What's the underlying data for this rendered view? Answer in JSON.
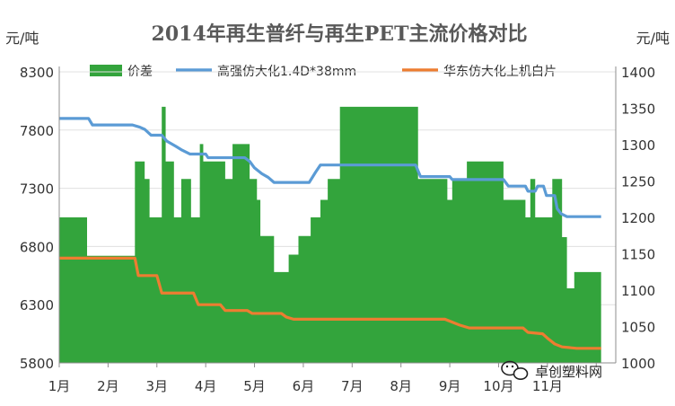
{
  "chart_data": {
    "type": "area+line",
    "title": "2014年再生普纤与再生PET主流价格对比",
    "left_unit": "元/吨",
    "right_unit": "元/吨",
    "categories": [
      "1月",
      "2月",
      "3月",
      "4月",
      "5月",
      "6月",
      "7月",
      "8月",
      "9月",
      "10月",
      "11月"
    ],
    "y_left": {
      "min": 5800,
      "max": 8300,
      "ticks": [
        5800,
        6300,
        6800,
        7300,
        7800,
        8300
      ]
    },
    "y_right": {
      "min": 1000,
      "max": 1400,
      "ticks": [
        1000,
        1050,
        1100,
        1150,
        1200,
        1250,
        1300,
        1350,
        1400
      ]
    },
    "x_range": [
      0,
      11.4
    ],
    "colors": {
      "spread": "#33A43C",
      "fiber": "#5B9BD5",
      "pet": "#ED7D31"
    },
    "series": [
      {
        "name": "价差",
        "axis": "left",
        "type": "area",
        "points": [
          [
            0.0,
            7050
          ],
          [
            0.57,
            7050
          ],
          [
            0.57,
            6720
          ],
          [
            1.55,
            6720
          ],
          [
            1.55,
            7530
          ],
          [
            1.75,
            7530
          ],
          [
            1.75,
            7380
          ],
          [
            1.85,
            7380
          ],
          [
            1.85,
            7050
          ],
          [
            2.1,
            7050
          ],
          [
            2.1,
            8000
          ],
          [
            2.18,
            8000
          ],
          [
            2.18,
            7530
          ],
          [
            2.35,
            7530
          ],
          [
            2.35,
            7050
          ],
          [
            2.5,
            7050
          ],
          [
            2.5,
            7380
          ],
          [
            2.7,
            7380
          ],
          [
            2.7,
            7050
          ],
          [
            2.88,
            7050
          ],
          [
            2.88,
            7680
          ],
          [
            2.95,
            7680
          ],
          [
            2.95,
            7530
          ],
          [
            3.4,
            7530
          ],
          [
            3.4,
            7380
          ],
          [
            3.55,
            7380
          ],
          [
            3.55,
            7680
          ],
          [
            3.9,
            7680
          ],
          [
            3.9,
            7380
          ],
          [
            4.05,
            7380
          ],
          [
            4.05,
            7200
          ],
          [
            4.12,
            7200
          ],
          [
            4.12,
            6890
          ],
          [
            4.4,
            6890
          ],
          [
            4.4,
            6580
          ],
          [
            4.7,
            6580
          ],
          [
            4.7,
            6730
          ],
          [
            4.9,
            6730
          ],
          [
            4.9,
            6890
          ],
          [
            5.15,
            6890
          ],
          [
            5.15,
            7050
          ],
          [
            5.35,
            7050
          ],
          [
            5.35,
            7200
          ],
          [
            5.5,
            7200
          ],
          [
            5.5,
            7380
          ],
          [
            5.75,
            7380
          ],
          [
            5.75,
            8000
          ],
          [
            7.35,
            8000
          ],
          [
            7.35,
            7380
          ],
          [
            7.95,
            7380
          ],
          [
            7.95,
            7200
          ],
          [
            8.05,
            7200
          ],
          [
            8.05,
            7380
          ],
          [
            8.35,
            7380
          ],
          [
            8.35,
            7530
          ],
          [
            9.1,
            7530
          ],
          [
            9.1,
            7200
          ],
          [
            9.55,
            7200
          ],
          [
            9.55,
            7050
          ],
          [
            9.65,
            7050
          ],
          [
            9.65,
            7380
          ],
          [
            9.75,
            7380
          ],
          [
            9.75,
            7050
          ],
          [
            10.1,
            7050
          ],
          [
            10.1,
            7380
          ],
          [
            10.3,
            7380
          ],
          [
            10.3,
            6880
          ],
          [
            10.4,
            6880
          ],
          [
            10.4,
            6440
          ],
          [
            10.55,
            6440
          ],
          [
            10.55,
            6580
          ],
          [
            11.1,
            6580
          ],
          [
            11.1,
            5800
          ]
        ]
      },
      {
        "name": "高强仿大化1.4D*38mm",
        "axis": "right",
        "type": "line",
        "points": [
          [
            0.0,
            1336
          ],
          [
            0.6,
            1336
          ],
          [
            0.68,
            1327
          ],
          [
            1.5,
            1327
          ],
          [
            1.65,
            1324
          ],
          [
            1.75,
            1321
          ],
          [
            1.88,
            1313
          ],
          [
            2.1,
            1313
          ],
          [
            2.2,
            1305
          ],
          [
            2.38,
            1298
          ],
          [
            2.5,
            1293
          ],
          [
            2.68,
            1287
          ],
          [
            3.0,
            1287
          ],
          [
            3.05,
            1282
          ],
          [
            3.8,
            1282
          ],
          [
            3.9,
            1277
          ],
          [
            4.0,
            1268
          ],
          [
            4.15,
            1260
          ],
          [
            4.28,
            1255
          ],
          [
            4.4,
            1248
          ],
          [
            5.12,
            1248
          ],
          [
            5.25,
            1262
          ],
          [
            5.35,
            1272
          ],
          [
            7.3,
            1272
          ],
          [
            7.4,
            1256
          ],
          [
            8.0,
            1256
          ],
          [
            8.05,
            1252
          ],
          [
            9.1,
            1252
          ],
          [
            9.2,
            1243
          ],
          [
            9.55,
            1243
          ],
          [
            9.6,
            1236
          ],
          [
            9.75,
            1236
          ],
          [
            9.8,
            1243
          ],
          [
            9.92,
            1243
          ],
          [
            9.98,
            1230
          ],
          [
            10.15,
            1230
          ],
          [
            10.2,
            1212
          ],
          [
            10.28,
            1205
          ],
          [
            10.4,
            1201
          ],
          [
            11.1,
            1201
          ]
        ]
      },
      {
        "name": "华东仿大化上机白片",
        "axis": "right",
        "type": "line",
        "points": [
          [
            0.0,
            1144
          ],
          [
            1.55,
            1144
          ],
          [
            1.62,
            1120
          ],
          [
            2.0,
            1120
          ],
          [
            2.1,
            1096
          ],
          [
            2.75,
            1096
          ],
          [
            2.85,
            1080
          ],
          [
            3.3,
            1080
          ],
          [
            3.4,
            1072
          ],
          [
            3.85,
            1072
          ],
          [
            3.95,
            1068
          ],
          [
            4.55,
            1068
          ],
          [
            4.65,
            1063
          ],
          [
            4.8,
            1060
          ],
          [
            7.9,
            1060
          ],
          [
            8.05,
            1056
          ],
          [
            8.2,
            1052
          ],
          [
            8.4,
            1048
          ],
          [
            9.5,
            1048
          ],
          [
            9.6,
            1042
          ],
          [
            9.9,
            1040
          ],
          [
            10.0,
            1034
          ],
          [
            10.15,
            1026
          ],
          [
            10.3,
            1022
          ],
          [
            10.6,
            1020
          ],
          [
            11.1,
            1020
          ]
        ]
      }
    ]
  },
  "watermark": {
    "wechat_name": "卓创塑料网"
  }
}
